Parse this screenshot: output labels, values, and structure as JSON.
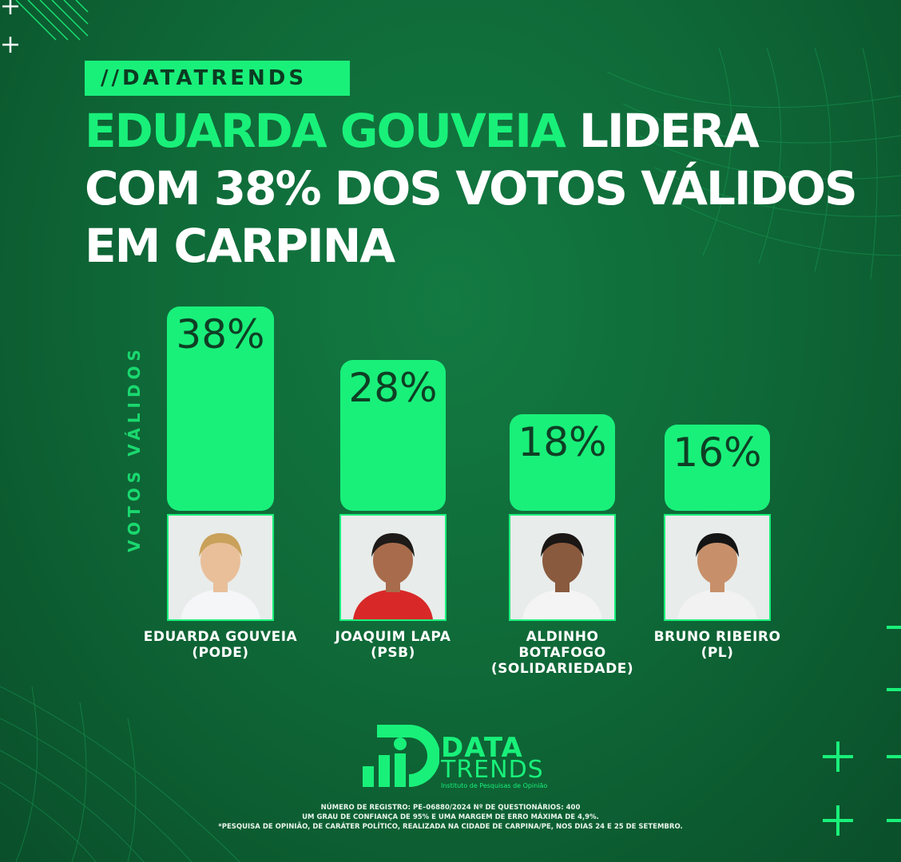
{
  "brand_tag": "//DATATRENDS",
  "headline": {
    "highlight": "EDUARDA GOUVEIA",
    "line1_rest": "LIDERA",
    "line2": "COM 38% DOS VOTOS VÁLIDOS",
    "line3": "EM CARPINA"
  },
  "colors": {
    "accent": "#19f07a",
    "background": "#0f6a38",
    "bar_text": "#0e3f24"
  },
  "chart_data": {
    "type": "bar",
    "ylabel": "VOTOS VÁLIDOS",
    "ylim": [
      0,
      38
    ],
    "categories": [
      "EDUARDA GOUVEIA (PODE)",
      "JOAQUIM LAPA (PSB)",
      "ALDINHO BOTAFOGO (SOLIDARIEDADE)",
      "BRUNO RIBEIRO (PL)"
    ],
    "values": [
      38,
      28,
      18,
      16
    ],
    "value_labels": [
      "38%",
      "28%",
      "18%",
      "16%"
    ],
    "candidates": [
      {
        "name_lines": [
          "EDUARDA GOUVEIA",
          "(PODE)"
        ],
        "photo": "candidate-photo"
      },
      {
        "name_lines": [
          "JOAQUIM LAPA",
          "(PSB)"
        ],
        "photo": "candidate-photo"
      },
      {
        "name_lines": [
          "ALDINHO",
          "BOTAFOGO",
          "(SOLIDARIEDADE)"
        ],
        "photo": "candidate-photo"
      },
      {
        "name_lines": [
          "BRUNO RIBEIRO",
          "(PL)"
        ],
        "photo": "candidate-photo"
      }
    ]
  },
  "logo": {
    "word1": "DATA",
    "word2": "TRENDS",
    "subtitle": "Instituto de Pesquisas de Opinião"
  },
  "footnotes": [
    "NÚMERO DE REGISTRO: PE–06880/2024  Nº DE QUESTIONÁRIOS: 400",
    "UM GRAU DE CONFIANÇA DE 95% E UMA MARGEM DE ERRO MÁXIMA DE 4,9%.",
    "*PESQUISA DE OPINIÃO, DE CARÁTER POLÍTICO, REALIZADA NA CIDADE DE CARPINA/PE, NOS DIAS 24 E 25 DE SETEMBRO."
  ]
}
